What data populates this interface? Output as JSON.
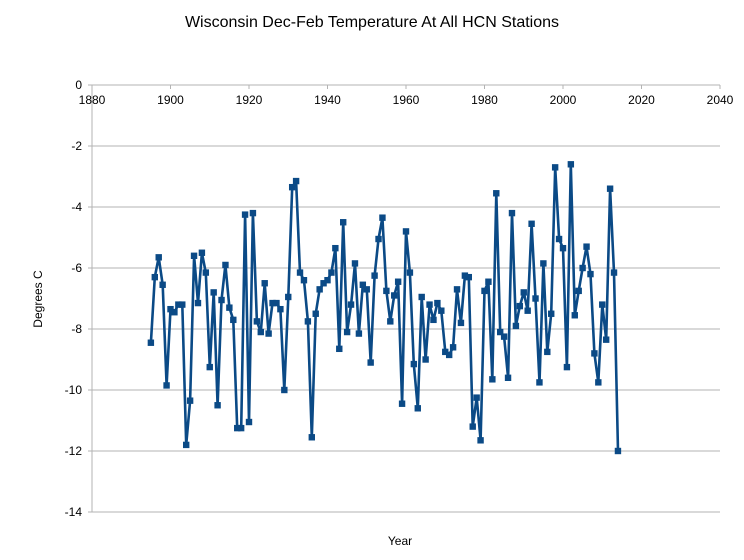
{
  "chart_data": {
    "type": "line",
    "title": "Wisconsin Dec-Feb Temperature At All HCN Stations",
    "xlabel": "Year",
    "ylabel": "Degrees C",
    "xlim": [
      1880,
      2040
    ],
    "ylim": [
      -14,
      0
    ],
    "x_ticks": [
      1880,
      1900,
      1920,
      1940,
      1960,
      1980,
      2000,
      2020,
      2040
    ],
    "y_ticks": [
      0,
      -2,
      -4,
      -6,
      -8,
      -10,
      -12,
      -14
    ],
    "grid": "horizontal",
    "legend": "none",
    "series_color": "#0b4a86",
    "marker": "square",
    "series": [
      {
        "x": [
          1895,
          1896,
          1897,
          1898,
          1899,
          1900,
          1901,
          1902,
          1903,
          1904,
          1905,
          1906,
          1907,
          1908,
          1909,
          1910,
          1911,
          1912,
          1913,
          1914,
          1915,
          1916,
          1917,
          1918,
          1919,
          1920,
          1921,
          1922,
          1923,
          1924,
          1925,
          1926,
          1927,
          1928,
          1929,
          1930,
          1931,
          1932,
          1933,
          1934,
          1935,
          1936,
          1937,
          1938,
          1939,
          1940,
          1941,
          1942,
          1943,
          1944,
          1945,
          1946,
          1947,
          1948,
          1949,
          1950,
          1951,
          1952,
          1953,
          1954,
          1955,
          1956,
          1957,
          1958,
          1959,
          1960,
          1961,
          1962,
          1963,
          1964,
          1965,
          1966,
          1967,
          1968,
          1969,
          1970,
          1971,
          1972,
          1973,
          1974,
          1975,
          1976,
          1977,
          1978,
          1979,
          1980,
          1981,
          1982,
          1983,
          1984,
          1985,
          1986,
          1987,
          1988,
          1989,
          1990,
          1991,
          1992,
          1993,
          1994,
          1995,
          1996,
          1997,
          1998,
          1999,
          2000,
          2001,
          2002,
          2003,
          2004,
          2005,
          2006,
          2007,
          2008,
          2009,
          2010,
          2011,
          2012,
          2013,
          2014
        ],
        "y": [
          -8.45,
          -6.3,
          -5.65,
          -6.55,
          -9.85,
          -7.35,
          -7.45,
          -7.2,
          -7.2,
          -11.8,
          -10.35,
          -5.6,
          -7.15,
          -5.5,
          -6.15,
          -9.25,
          -6.8,
          -10.5,
          -7.05,
          -5.9,
          -7.3,
          -7.7,
          -11.25,
          -11.25,
          -4.25,
          -11.05,
          -4.2,
          -7.75,
          -8.1,
          -6.5,
          -8.15,
          -7.15,
          -7.15,
          -7.35,
          -10.0,
          -6.95,
          -3.35,
          -3.15,
          -6.15,
          -6.4,
          -7.75,
          -11.55,
          -7.5,
          -6.7,
          -6.5,
          -6.4,
          -6.15,
          -5.35,
          -8.65,
          -4.5,
          -8.1,
          -7.2,
          -5.85,
          -8.15,
          -6.55,
          -6.7,
          -9.1,
          -6.25,
          -5.05,
          -4.35,
          -6.75,
          -7.75,
          -6.9,
          -6.45,
          -10.45,
          -4.8,
          -6.15,
          -9.15,
          -10.6,
          -6.95,
          -9.0,
          -7.2,
          -7.7,
          -7.15,
          -7.4,
          -8.75,
          -8.85,
          -8.6,
          -6.7,
          -7.8,
          -6.25,
          -6.3,
          -11.2,
          -10.25,
          -11.65,
          -6.75,
          -6.45,
          -9.65,
          -3.55,
          -8.1,
          -8.25,
          -9.6,
          -4.2,
          -7.9,
          -7.25,
          -6.8,
          -7.4,
          -4.55,
          -7.0,
          -9.75,
          -5.85,
          -8.75,
          -7.5,
          -2.7,
          -5.05,
          -5.35,
          -9.25,
          -2.6,
          -7.55,
          -6.75,
          -6.0,
          -5.3,
          -6.2,
          -8.8,
          -9.75,
          -7.2,
          -8.35,
          -3.4,
          -6.15,
          -12.0
        ]
      }
    ]
  }
}
